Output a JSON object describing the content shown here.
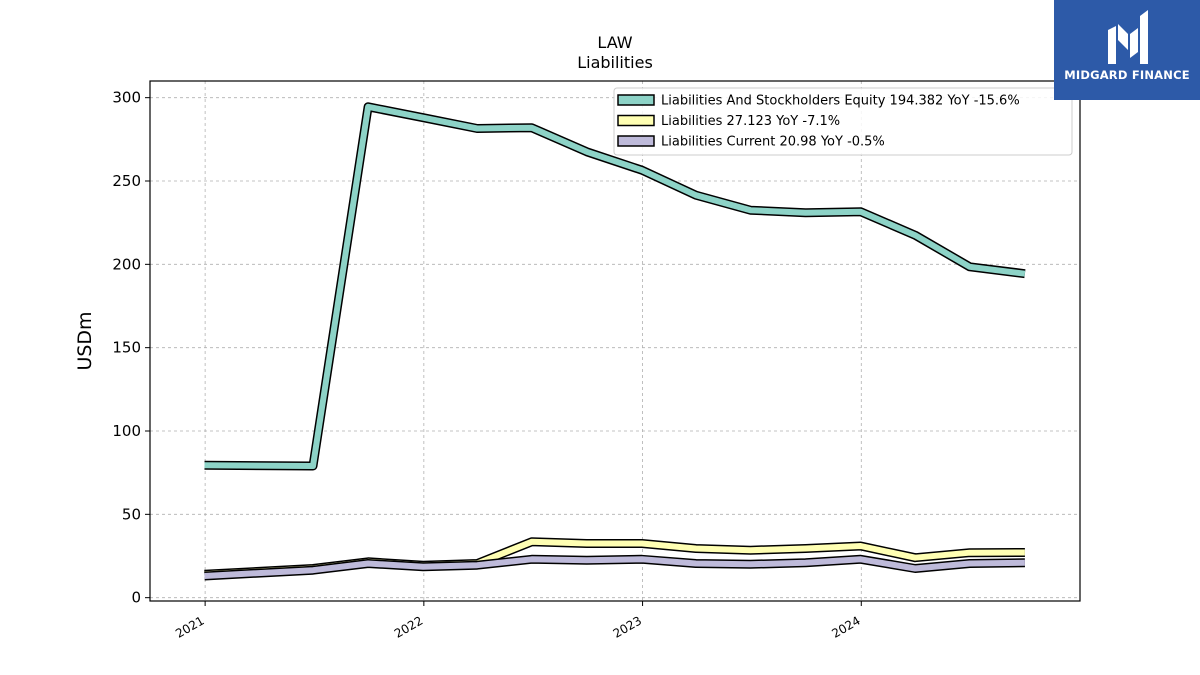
{
  "chart_data": {
    "type": "line",
    "title": "LAW",
    "subtitle": "Liabilities",
    "ylabel": "USDm",
    "xlabel": "",
    "ylim": [
      -2,
      310
    ],
    "xlim": [
      "2020-10-01",
      "2024-12-31"
    ],
    "grid": true,
    "legend_position": "top-right",
    "x_ticks": [
      "2021",
      "2022",
      "2023",
      "2024"
    ],
    "y_ticks": [
      0,
      50,
      100,
      150,
      200,
      250,
      300
    ],
    "x": [
      "2020-12-31",
      "2021-06-30",
      "2021-09-30",
      "2021-12-31",
      "2022-03-31",
      "2022-06-30",
      "2022-09-30",
      "2022-12-31",
      "2023-03-31",
      "2023-06-30",
      "2023-09-30",
      "2023-12-31",
      "2024-03-31",
      "2024-06-30",
      "2024-09-30"
    ],
    "series": [
      {
        "name": "Liabilities And Stockholders Equity",
        "legend": "Liabilities And Stockholders Equity  194.382 YoY -15.6%",
        "color": "#8dd3c7",
        "values": [
          79.5,
          79.0,
          294.5,
          288.0,
          281.5,
          282.0,
          267.5,
          256.5,
          241.5,
          232.5,
          231.0,
          231.5,
          217.5,
          198.5,
          194.382
        ]
      },
      {
        "name": "Liabilities",
        "legend": "Liabilities  27.123 YoY -7.1%",
        "color": "#ffffb3",
        "values": [
          14.0,
          17.5,
          21.5,
          19.5,
          20.5,
          33.5,
          32.5,
          32.5,
          29.5,
          28.5,
          29.5,
          31.0,
          24.0,
          27.0,
          27.123
        ]
      },
      {
        "name": "Liabilities Current",
        "legend": "Liabilities Current  20.98 YoY -0.5%",
        "color": "#bebada",
        "values": [
          13.0,
          16.5,
          20.5,
          18.5,
          19.5,
          23.0,
          22.5,
          23.0,
          20.5,
          20.0,
          21.0,
          23.0,
          17.5,
          20.5,
          20.98
        ]
      }
    ]
  },
  "logo": {
    "text": "MIDGARD FINANCE",
    "background": "#2d5aa8",
    "icon": "midgard-logo-icon"
  }
}
